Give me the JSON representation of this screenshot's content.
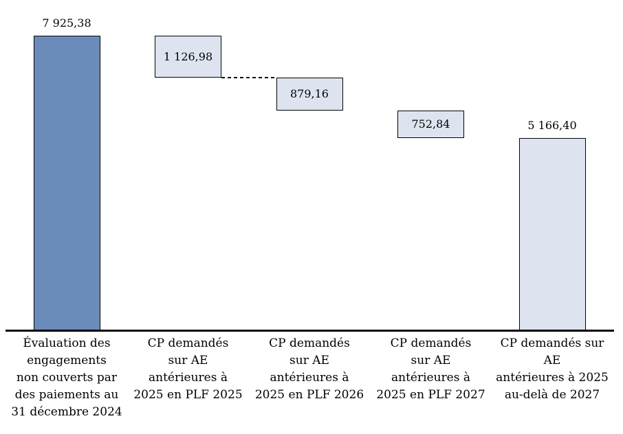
{
  "chart_data": {
    "type": "bar",
    "subtype": "waterfall",
    "title": "",
    "xlabel": "",
    "ylabel": "",
    "ylim": [
      0,
      8400
    ],
    "grid": false,
    "legend_position": "none",
    "colors": {
      "dark_bar_fill": "#6B8CBB",
      "light_bar_fill": "#DEE4EF",
      "border": "#000000",
      "axis": "#000000",
      "text": "#000000",
      "background": "#FFFFFF"
    },
    "bars": [
      {
        "label": "Évaluation des engagements non couverts par des paiements au 31 décembre 2024",
        "label_lines": [
          "Évaluation des",
          "engagements",
          "non couverts par",
          "des paiements au",
          "31 décembre 2024"
        ],
        "value": 7925.38,
        "value_label": "7 925,38",
        "start": 0,
        "end": 7925.38,
        "fill": "#6B8CBB",
        "value_position": "above"
      },
      {
        "label": "CP demandés sur AE antérieures à 2025 en PLF 2025",
        "label_lines": [
          "CP demandés",
          "sur AE",
          "antérieures à",
          "2025 en PLF 2025"
        ],
        "value": 1126.98,
        "value_label": "1 126,98",
        "start": 6798.4,
        "end": 7925.38,
        "fill": "#DEE4EF",
        "value_position": "inside"
      },
      {
        "label": "CP demandés sur AE antérieures à 2025 en PLF 2026",
        "label_lines": [
          "CP demandés",
          "sur AE",
          "antérieures à",
          "2025 en PLF 2026"
        ],
        "value": 879.16,
        "value_label": "879,16",
        "start": 5919.24,
        "end": 6798.4,
        "fill": "#DEE4EF",
        "value_position": "inside"
      },
      {
        "label": "CP demandés sur AE antérieures à 2025 en PLF 2027",
        "label_lines": [
          "CP demandés",
          "sur AE",
          "antérieures à",
          "2025 en PLF 2027"
        ],
        "value": 752.84,
        "value_label": "752,84",
        "start": 5166.4,
        "end": 5919.24,
        "fill": "#DEE4EF",
        "value_position": "inside"
      },
      {
        "label": "CP demandés sur AE antérieures à 2025 au-delà de 2027",
        "label_lines": [
          "CP demandés sur",
          "AE",
          "antérieures à 2025",
          "au-delà de 2027"
        ],
        "value": 5166.4,
        "value_label": "5 166,40",
        "start": 0,
        "end": 5166.4,
        "fill": "#DEE4EF",
        "value_position": "above"
      }
    ],
    "connectors": [
      {
        "from_bar": 1,
        "to_bar": 2,
        "level": 6798.4,
        "style": "dashed"
      }
    ]
  }
}
